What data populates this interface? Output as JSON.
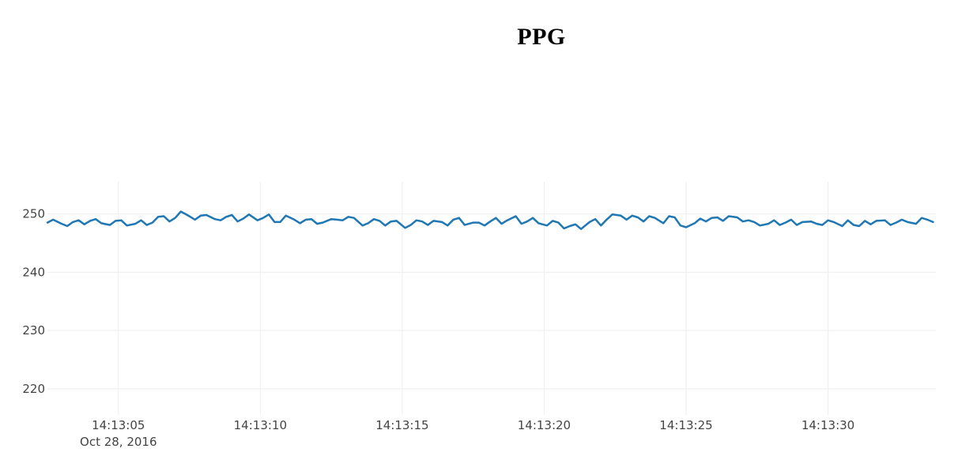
{
  "chart_data": {
    "type": "line",
    "title": "PPG",
    "xlabel": "",
    "ylabel": "",
    "x_date_label": "Oct 28, 2016",
    "x_range": [
      "2016-10-28 14:13:02.5",
      "2016-10-28 14:13:33.8"
    ],
    "xlim": [
      "2016-10-28 14:13:02.5",
      "2016-10-28 14:13:33.8"
    ],
    "ylim": [
      215.5,
      255.5
    ],
    "x_ticks": [
      {
        "t": "2016-10-28 14:13:05",
        "label": "14:13:05"
      },
      {
        "t": "2016-10-28 14:13:10",
        "label": "14:13:10"
      },
      {
        "t": "2016-10-28 14:13:15",
        "label": "14:13:15"
      },
      {
        "t": "2016-10-28 14:13:20",
        "label": "14:13:20"
      },
      {
        "t": "2016-10-28 14:13:25",
        "label": "14:13:25"
      },
      {
        "t": "2016-10-28 14:13:30",
        "label": "14:13:30"
      }
    ],
    "y_ticks": [
      220,
      230,
      240,
      250
    ],
    "grid": true,
    "legend": "none",
    "series": [
      {
        "color": "#1f77b4",
        "x": [
          "14:13:02.5",
          "14:13:02.7",
          "14:13:03.0",
          "14:13:03.2",
          "14:13:03.4",
          "14:13:03.6",
          "14:13:03.8",
          "14:13:04.0",
          "14:13:04.2",
          "14:13:04.4",
          "14:13:04.7",
          "14:13:04.9",
          "14:13:05.1",
          "14:13:05.3",
          "14:13:05.6",
          "14:13:05.8",
          "14:13:06.0",
          "14:13:06.2",
          "14:13:06.4",
          "14:13:06.6",
          "14:13:06.8",
          "14:13:07.0",
          "14:13:07.2",
          "14:13:07.5",
          "14:13:07.7",
          "14:13:07.9",
          "14:13:08.1",
          "14:13:08.4",
          "14:13:08.6",
          "14:13:08.8",
          "14:13:09.0",
          "14:13:09.2",
          "14:13:09.4",
          "14:13:09.6",
          "14:13:09.9",
          "14:13:10.1",
          "14:13:10.3",
          "14:13:10.5",
          "14:13:10.7",
          "14:13:10.9",
          "14:13:11.2",
          "14:13:11.4",
          "14:13:11.6",
          "14:13:11.8",
          "14:13:12.0",
          "14:13:12.2",
          "14:13:12.5",
          "14:13:12.7",
          "14:13:12.9",
          "14:13:13.1",
          "14:13:13.3",
          "14:13:13.6",
          "14:13:13.8",
          "14:13:14.0",
          "14:13:14.2",
          "14:13:14.4",
          "14:13:14.6",
          "14:13:14.8",
          "14:13:15.1",
          "14:13:15.3",
          "14:13:15.5",
          "14:13:15.7",
          "14:13:15.9",
          "14:13:16.1",
          "14:13:16.4",
          "14:13:16.6",
          "14:13:16.8",
          "14:13:17.0",
          "14:13:17.2",
          "14:13:17.5",
          "14:13:17.7",
          "14:13:17.9",
          "14:13:18.1",
          "14:13:18.3",
          "14:13:18.5",
          "14:13:18.7",
          "14:13:19.0",
          "14:13:19.2",
          "14:13:19.4",
          "14:13:19.6",
          "14:13:19.8",
          "14:13:20.1",
          "14:13:20.3",
          "14:13:20.5",
          "14:13:20.7",
          "14:13:20.9",
          "14:13:21.1",
          "14:13:21.3",
          "14:13:21.6",
          "14:13:21.8",
          "14:13:22.0",
          "14:13:22.2",
          "14:13:22.4",
          "14:13:22.7",
          "14:13:22.9",
          "14:13:23.1",
          "14:13:23.3",
          "14:13:23.5",
          "14:13:23.7",
          "14:13:23.9",
          "14:13:24.2",
          "14:13:24.4",
          "14:13:24.6",
          "14:13:24.8",
          "14:13:25.0",
          "14:13:25.3",
          "14:13:25.5",
          "14:13:25.7",
          "14:13:25.9",
          "14:13:26.1",
          "14:13:26.3",
          "14:13:26.5",
          "14:13:26.8",
          "14:13:27.0",
          "14:13:27.2",
          "14:13:27.4",
          "14:13:27.6",
          "14:13:27.9",
          "14:13:28.1",
          "14:13:28.3",
          "14:13:28.5",
          "14:13:28.7",
          "14:13:28.9",
          "14:13:29.1",
          "14:13:29.4",
          "14:13:29.6",
          "14:13:29.8",
          "14:13:30.0",
          "14:13:30.2",
          "14:13:30.5",
          "14:13:30.7",
          "14:13:30.9",
          "14:13:31.1",
          "14:13:31.3",
          "14:13:31.5",
          "14:13:31.7",
          "14:13:32.0",
          "14:13:32.2",
          "14:13:32.4",
          "14:13:32.6",
          "14:13:32.8",
          "14:13:33.1",
          "14:13:33.3",
          "14:13:33.5",
          "14:13:33.7"
        ],
        "y": [
          248.5,
          249.0,
          248.3,
          247.9,
          248.6,
          248.9,
          248.2,
          248.8,
          249.1,
          248.4,
          248.1,
          248.8,
          248.9,
          248.0,
          248.3,
          248.9,
          248.1,
          248.5,
          249.5,
          249.6,
          248.7,
          249.3,
          250.4,
          249.6,
          249.0,
          249.7,
          249.8,
          249.1,
          248.9,
          249.5,
          249.8,
          248.7,
          249.2,
          249.9,
          248.9,
          249.3,
          249.9,
          248.6,
          248.6,
          249.7,
          249.0,
          248.4,
          249.0,
          249.1,
          248.3,
          248.5,
          249.1,
          249.0,
          248.9,
          249.5,
          249.3,
          248.0,
          248.4,
          249.1,
          248.8,
          248.0,
          248.7,
          248.8,
          247.6,
          248.1,
          248.9,
          248.7,
          248.1,
          248.8,
          248.6,
          248.0,
          249.0,
          249.3,
          248.1,
          248.5,
          248.5,
          248.0,
          248.7,
          249.3,
          248.3,
          248.9,
          249.6,
          248.3,
          248.7,
          249.3,
          248.4,
          248.0,
          248.8,
          248.5,
          247.5,
          247.9,
          248.2,
          247.4,
          248.6,
          249.1,
          248.0,
          249.0,
          249.9,
          249.7,
          249.0,
          249.7,
          249.4,
          248.7,
          249.6,
          249.3,
          248.4,
          249.6,
          249.4,
          248.0,
          247.7,
          248.4,
          249.2,
          248.7,
          249.3,
          249.4,
          248.8,
          249.6,
          249.4,
          248.7,
          248.9,
          248.6,
          248.0,
          248.3,
          248.9,
          248.1,
          248.5,
          249.0,
          248.1,
          248.6,
          248.7,
          248.3,
          248.1,
          248.9,
          248.6,
          247.9,
          248.9,
          248.1,
          247.9,
          248.8,
          248.2,
          248.8,
          248.9,
          248.1,
          248.5,
          249.0,
          248.6,
          248.3,
          249.3,
          249.0,
          248.6
        ]
      }
    ]
  }
}
